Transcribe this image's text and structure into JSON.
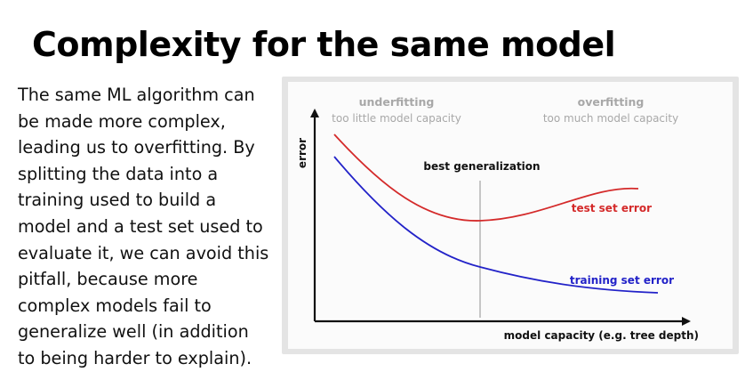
{
  "slide": {
    "title": "Complexity for the same model",
    "body_lines": [
      "The same ML algorithm can",
      "be made more complex,",
      "leading us to overfitting. By",
      "splitting the data into a",
      "training used to build a",
      "model and a test set used to",
      "evaluate it, we can avoid this",
      "pitfall, because more",
      "complex models fail to",
      "generalize well (in addition",
      "to being harder to explain)."
    ]
  },
  "figure": {
    "underfitting_title": "underfitting",
    "underfitting_sub": "too little model capacity",
    "overfitting_title": "overfitting",
    "overfitting_sub": "too much model capacity",
    "best_label": "best generalization",
    "y_axis_label": "error",
    "x_axis_label": "model capacity (e.g. tree depth)",
    "test_label": "test set error",
    "train_label": "training set error",
    "colors": {
      "test": "#d42a2a",
      "train": "#2222c8",
      "region_text": "#a8a8a8",
      "axis": "#111111"
    }
  }
}
